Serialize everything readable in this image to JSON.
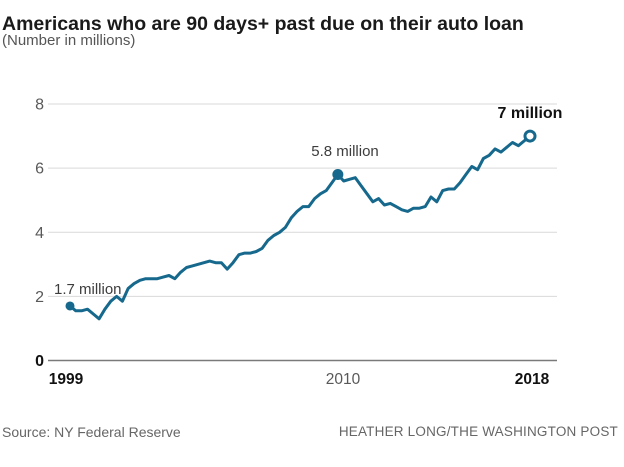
{
  "page": {
    "title": "Americans who are 90 days+ past due on their auto loan",
    "subtitle": "(Number in millions)",
    "source": "Source: NY Federal Reserve",
    "credit": "HEATHER LONG/THE WASHINGTON POST"
  },
  "colors": {
    "line": "#16698c",
    "grid": "#d9d9d9",
    "zero_axis": "#7a7a7a",
    "tick_gray": "#595959",
    "tick_bold": "#111111",
    "annotation_text": "#3d3d3d",
    "background": "#ffffff"
  },
  "chart_data": {
    "type": "line",
    "title": "Americans who are 90 days+ past due on their auto loan",
    "subtitle": "(Number in millions)",
    "unit": "millions of people",
    "frequency": "quarterly",
    "x_start": "1999 Q1",
    "x_end": "2018 Q4",
    "ylim": [
      0,
      8
    ],
    "y_ticks": [
      0,
      2,
      4,
      6,
      8
    ],
    "x_tick_labels": [
      "1999",
      "2010",
      "2018"
    ],
    "grid": "horizontal",
    "legend": "none",
    "series": [
      {
        "name": "Auto loan borrowers 90+ days past due (millions)",
        "values": [
          1.7,
          1.55,
          1.55,
          1.6,
          1.45,
          1.3,
          1.6,
          1.85,
          2.0,
          1.85,
          2.25,
          2.4,
          2.5,
          2.55,
          2.55,
          2.55,
          2.6,
          2.65,
          2.55,
          2.75,
          2.9,
          2.95,
          3.0,
          3.05,
          3.1,
          3.05,
          3.05,
          2.85,
          3.05,
          3.3,
          3.35,
          3.35,
          3.4,
          3.5,
          3.75,
          3.9,
          4.0,
          4.15,
          4.45,
          4.65,
          4.8,
          4.8,
          5.05,
          5.2,
          5.3,
          5.55,
          5.8,
          5.6,
          5.65,
          5.7,
          5.45,
          5.2,
          4.95,
          5.05,
          4.85,
          4.9,
          4.8,
          4.7,
          4.65,
          4.75,
          4.75,
          4.8,
          5.1,
          4.95,
          5.3,
          5.35,
          5.35,
          5.55,
          5.8,
          6.05,
          5.95,
          6.3,
          6.4,
          6.6,
          6.5,
          6.65,
          6.8,
          6.7,
          6.85,
          7.0
        ]
      }
    ],
    "annotations": [
      {
        "id": "start",
        "label": "1.7 million",
        "quarter_index": 0,
        "value": 1.7,
        "marker": "filled"
      },
      {
        "id": "peak",
        "label": "5.8 million",
        "quarter_index": 46,
        "value": 5.8,
        "marker": "filled"
      },
      {
        "id": "end",
        "label": "7 million",
        "quarter_index": 79,
        "value": 7.0,
        "marker": "open"
      }
    ]
  }
}
